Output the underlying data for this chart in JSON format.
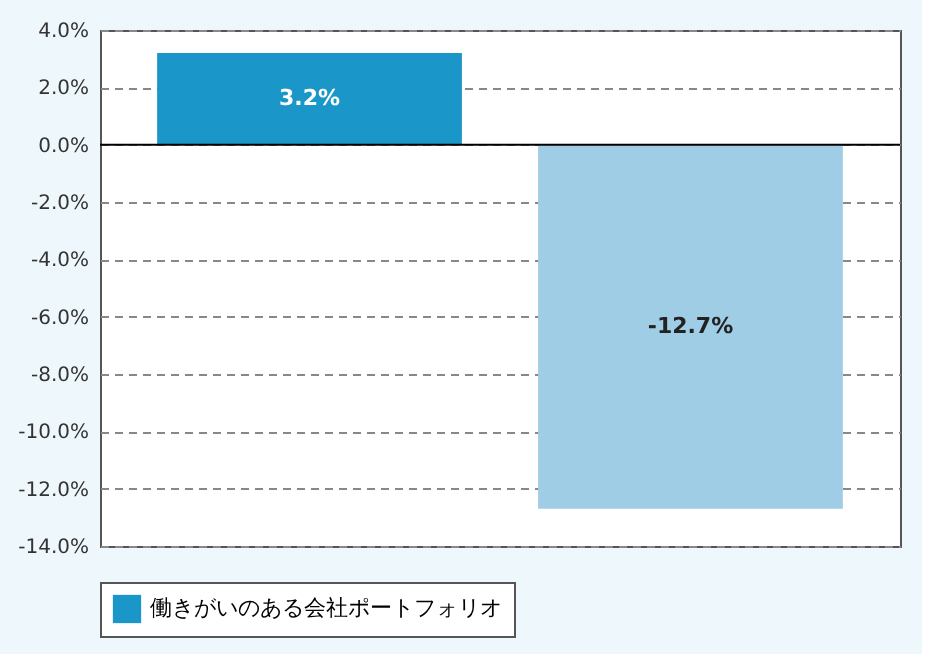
{
  "chart_data": {
    "type": "bar",
    "categories": [
      null,
      null
    ],
    "series": [
      {
        "name": "働きがいのある会社ポートフォリオ",
        "color": "#1a96c8",
        "values": [
          3.2,
          null
        ],
        "value_labels": [
          "3.2%",
          null
        ]
      },
      {
        "color": "#9fcde6",
        "values": [
          null,
          -12.7
        ],
        "value_labels": [
          null,
          "-12.7%"
        ]
      }
    ],
    "ylim": [
      -14,
      4
    ],
    "yticks": [
      {
        "value": 4,
        "label": "4.0%"
      },
      {
        "value": 2,
        "label": "2.0%"
      },
      {
        "value": 0,
        "label": "0.0%"
      },
      {
        "value": -2,
        "label": "-2.0%"
      },
      {
        "value": -4,
        "label": "-4.0%"
      },
      {
        "value": -6,
        "label": "-6.0%"
      },
      {
        "value": -8,
        "label": "-8.0%"
      },
      {
        "value": -10,
        "label": "-10.0%"
      },
      {
        "value": -12,
        "label": "-12.0%"
      },
      {
        "value": -14,
        "label": "-14.0%"
      }
    ],
    "grid": "y",
    "legend": "bottom"
  }
}
